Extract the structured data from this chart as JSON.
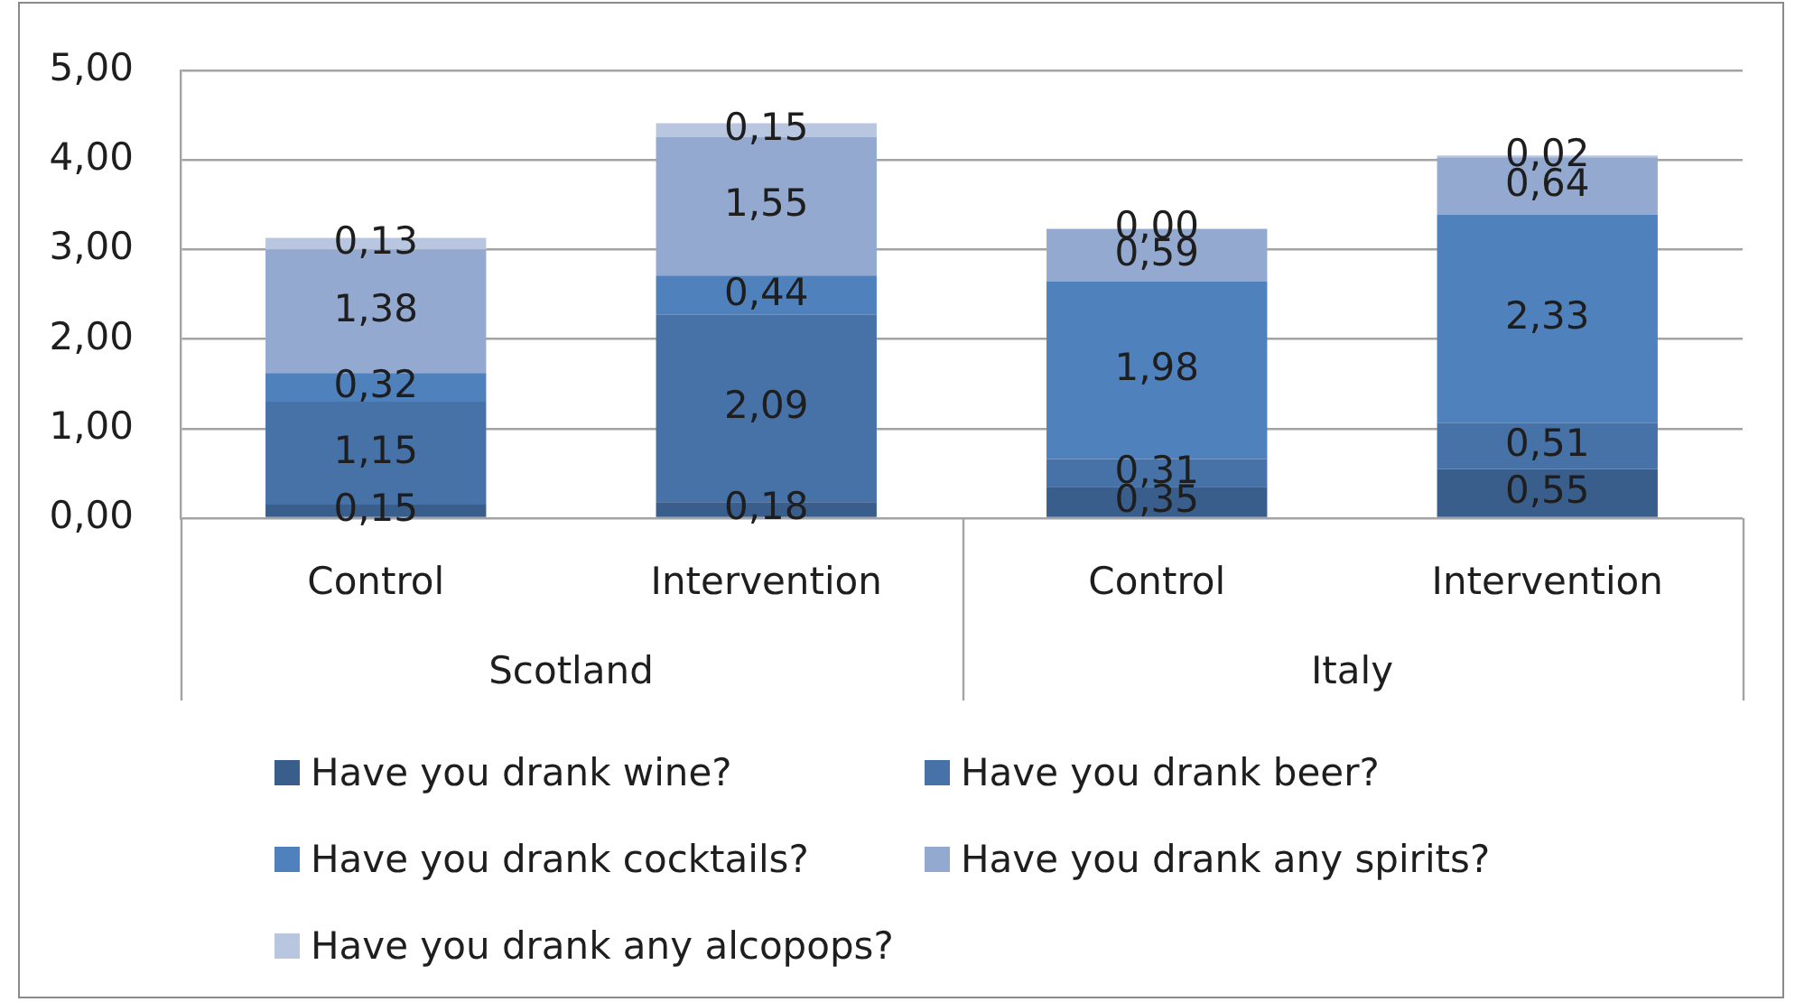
{
  "chart_data": {
    "type": "bar",
    "stacked": true,
    "categories": [
      "Control",
      "Intervention",
      "Control",
      "Intervention"
    ],
    "series": [
      {
        "name": "Have you drank wine?",
        "color": "#3a5e8c",
        "values": [
          0.15,
          0.18,
          0.35,
          0.55
        ],
        "value_labels": [
          "0,15",
          "0,18",
          "0,35",
          "0,55"
        ]
      },
      {
        "name": "Have you drank beer?",
        "color": "#4672a8",
        "values": [
          1.15,
          2.09,
          0.31,
          0.51
        ],
        "value_labels": [
          "1,15",
          "2,09",
          "0,31",
          "0,51"
        ]
      },
      {
        "name": "Have you drank cocktails?",
        "color": "#4f81bd",
        "values": [
          0.32,
          0.44,
          1.98,
          2.33
        ],
        "value_labels": [
          "0,32",
          "0,44",
          "1,98",
          "2,33"
        ]
      },
      {
        "name": "Have you drank any spirits?",
        "color": "#94a9d0",
        "values": [
          1.38,
          1.55,
          0.59,
          0.64
        ],
        "value_labels": [
          "1,38",
          "1,55",
          "0,59",
          "0,64"
        ]
      },
      {
        "name": "Have you drank any alcopops?",
        "color": "#b9c6df",
        "values": [
          0.13,
          0.15,
          0.0,
          0.02
        ],
        "value_labels": [
          "0,13",
          "0,15",
          "0,00",
          "0,02"
        ]
      }
    ],
    "ylim": [
      0,
      5
    ],
    "yticks": [
      {
        "value": 0,
        "label": "0,00"
      },
      {
        "value": 1,
        "label": "1,00"
      },
      {
        "value": 2,
        "label": "2,00"
      },
      {
        "value": 3,
        "label": "3,00"
      },
      {
        "value": 4,
        "label": "4,00"
      },
      {
        "value": 5,
        "label": "5,00"
      }
    ],
    "grid": "y",
    "legend": "bottom",
    "annotations": [
      "Scotland",
      "Italy"
    ]
  }
}
